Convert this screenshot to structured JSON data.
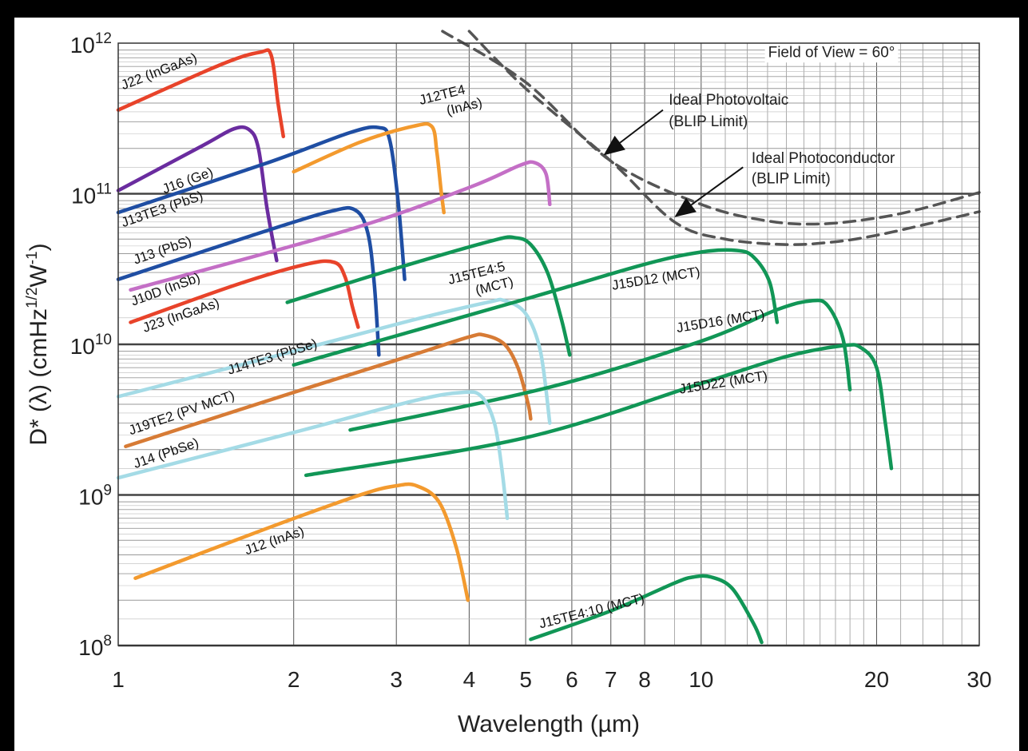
{
  "chart_data": {
    "type": "line",
    "xlabel": "Wavelength (µm)",
    "ylabel": "D* (λ) (cmHz1/2W-1)",
    "xscale": "log",
    "yscale": "log",
    "xlim": [
      1,
      30
    ],
    "ylim": [
      100000000.0,
      1000000000000.0
    ],
    "grid": true,
    "x_tick_labels": [
      {
        "v": 1,
        "label": "1"
      },
      {
        "v": 2,
        "label": "2"
      },
      {
        "v": 3,
        "label": "3"
      },
      {
        "v": 4,
        "label": "4"
      },
      {
        "v": 5,
        "label": "5"
      },
      {
        "v": 6,
        "label": "6"
      },
      {
        "v": 7,
        "label": "7"
      },
      {
        "v": 8,
        "label": "8"
      },
      {
        "v": 10,
        "label": "10"
      },
      {
        "v": 20,
        "label": "20"
      },
      {
        "v": 30,
        "label": "30"
      }
    ],
    "y_tick_labels": [
      {
        "v": 100000000.0,
        "mant": "10",
        "exp": "8"
      },
      {
        "v": 1000000000.0,
        "mant": "10",
        "exp": "9"
      },
      {
        "v": 10000000000.0,
        "mant": "10",
        "exp": "10"
      },
      {
        "v": 100000000000.0,
        "mant": "10",
        "exp": "11"
      },
      {
        "v": 1000000000000.0,
        "mant": "10",
        "exp": "12"
      }
    ],
    "annotations": [
      {
        "name": "field-of-view",
        "text": "Field of View = 60°",
        "x": 21.5,
        "y": 810000000000.0,
        "anchor": "end"
      },
      {
        "name": "ideal-photovoltaic-line1",
        "text": "Ideal Photovoltaic",
        "x": 8.8,
        "y": 390000000000.0,
        "anchor": "start"
      },
      {
        "name": "ideal-photovoltaic-line2",
        "text": "(BLIP Limit)",
        "x": 8.8,
        "y": 280000000000.0,
        "anchor": "start"
      },
      {
        "name": "ideal-photoconductor-line1",
        "text": "Ideal Photoconductor",
        "x": 12.2,
        "y": 160000000000.0,
        "anchor": "start"
      },
      {
        "name": "ideal-photoconductor-line2",
        "text": "(BLIP Limit)",
        "x": 12.2,
        "y": 117000000000.0,
        "anchor": "start"
      }
    ],
    "arrows": [
      {
        "name": "photovoltaic-arrow",
        "from": [
          8.6,
          360000000000.0
        ],
        "to": [
          6.8,
          180000000000.0
        ]
      },
      {
        "name": "photoconductor-arrow",
        "from": [
          11.8,
          150000000000.0
        ],
        "to": [
          9.0,
          70000000000.0
        ]
      }
    ],
    "series": [
      {
        "name": "J22 (InGaAs)",
        "color": "#e8432a",
        "x": [
          1,
          1.5,
          1.75,
          1.83,
          1.88,
          1.92
        ],
        "y": [
          360000000000.0,
          720000000000.0,
          870000000000.0,
          830000000000.0,
          400000000000.0,
          240000000000.0
        ],
        "label": {
          "text": "J22 (InGaAs)",
          "x": 1.02,
          "y": 490000000000.0,
          "angle": -21
        }
      },
      {
        "name": "J16 (Ge)",
        "color": "#6a2c9f",
        "x": [
          1,
          1.4,
          1.58,
          1.68,
          1.74,
          1.8,
          1.87
        ],
        "y": [
          105000000000.0,
          210000000000.0,
          270000000000.0,
          265000000000.0,
          200000000000.0,
          80000000000.0,
          36000000000.0
        ],
        "label": {
          "text": "J16 (Ge)",
          "x": 1.2,
          "y": 100000000000.0,
          "angle": -20
        }
      },
      {
        "name": "J13TE3 (PbS)",
        "color": "#1f4ea3",
        "x": [
          1,
          1.8,
          2.5,
          2.8,
          2.92,
          3.02,
          3.1
        ],
        "y": [
          75000000000.0,
          160000000000.0,
          255000000000.0,
          275000000000.0,
          230000000000.0,
          90000000000.0,
          27000000000.0
        ],
        "label": {
          "text": "J13TE3 (PbS)",
          "x": 1.02,
          "y": 60000000000.0,
          "angle": -19
        }
      },
      {
        "name": "J12TE4 (InAs)",
        "color": "#f39a2e",
        "x": [
          2,
          2.6,
          3.2,
          3.45,
          3.52,
          3.58,
          3.62
        ],
        "y": [
          140000000000.0,
          220000000000.0,
          280000000000.0,
          280000000000.0,
          190000000000.0,
          105000000000.0,
          75000000000.0
        ],
        "label": {
          "text": "J12TE4",
          "text2": "(InAs)",
          "x": 3.3,
          "y": 390000000000.0,
          "angle": -14
        }
      },
      {
        "name": "J13 (PbS)",
        "color": "#1f4ea3",
        "x": [
          1,
          1.7,
          2.3,
          2.55,
          2.68,
          2.75,
          2.8
        ],
        "y": [
          27000000000.0,
          53000000000.0,
          76000000000.0,
          78000000000.0,
          55000000000.0,
          25000000000.0,
          8500000000.0
        ],
        "label": {
          "text": "J13 (PbS)",
          "x": 1.07,
          "y": 34000000000.0,
          "angle": -19
        }
      },
      {
        "name": "J10D (InSb)",
        "color": "#c46fc6",
        "x": [
          1.05,
          2.5,
          4,
          4.9,
          5.2,
          5.42,
          5.5
        ],
        "y": [
          23000000000.0,
          58000000000.0,
          110000000000.0,
          155000000000.0,
          160000000000.0,
          135000000000.0,
          85000000000.0
        ],
        "label": {
          "text": "J10D (InSb)",
          "x": 1.06,
          "y": 18000000000.0,
          "angle": -20
        }
      },
      {
        "name": "J23 (InGaAs)",
        "color": "#e8432a",
        "x": [
          1.05,
          1.6,
          2.1,
          2.35,
          2.45,
          2.52,
          2.58
        ],
        "y": [
          14000000000.0,
          25000000000.0,
          34000000000.0,
          35000000000.0,
          28000000000.0,
          18000000000.0,
          13000000000.0
        ],
        "label": {
          "text": "J23 (InGaAs)",
          "x": 1.11,
          "y": 12000000000.0,
          "angle": -19
        }
      },
      {
        "name": "J15TE4:5 (MCT)",
        "color": "#119656",
        "x": [
          1.95,
          3,
          4.4,
          4.8,
          5.1,
          5.45,
          5.75,
          5.95
        ],
        "y": [
          19000000000.0,
          32000000000.0,
          49000000000.0,
          51000000000.0,
          46000000000.0,
          30000000000.0,
          15000000000.0,
          8500000000.0
        ],
        "label": {
          "text": "J15TE4:5",
          "text2": "(MCT)",
          "x": 3.7,
          "y": 25000000000.0,
          "angle": -14
        }
      },
      {
        "name": "J14TE3 (PbSe)",
        "color": "#a4dbe6",
        "x": [
          1,
          2,
          3.2,
          4.3,
          4.6,
          5.0,
          5.3,
          5.5
        ],
        "y": [
          4500000000.0,
          9000000000.0,
          14500000000.0,
          19000000000.0,
          19500000000.0,
          16000000000.0,
          9000000000.0,
          3000000000.0
        ],
        "label": {
          "text": "J14TE3 (PbSe)",
          "x": 1.55,
          "y": 6300000000.0,
          "angle": -17
        }
      },
      {
        "name": "J15D12 (MCT)",
        "color": "#119656",
        "x": [
          2,
          5,
          8,
          10,
          11.5,
          12.3,
          13.1,
          13.5
        ],
        "y": [
          7300000000.0,
          20000000000.0,
          34000000000.0,
          41000000000.0,
          42000000000.0,
          38000000000.0,
          26000000000.0,
          14000000000.0
        ],
        "label": {
          "text": "J15D12 (MCT)",
          "x": 7.05,
          "y": 23000000000.0,
          "angle": -9
        }
      },
      {
        "name": "J19TE2 (PV MCT)",
        "color": "#d77b35",
        "x": [
          1.03,
          2,
          3.2,
          4.0,
          4.25,
          4.6,
          4.85,
          5.05,
          5.1
        ],
        "y": [
          2100000000.0,
          4800000000.0,
          8500000000.0,
          11200000000.0,
          11500000000.0,
          10000000000.0,
          7000000000.0,
          4000000000.0,
          3200000000.0
        ],
        "label": {
          "text": "J19TE2 (PV MCT)",
          "x": 1.05,
          "y": 2500000000.0,
          "angle": -19
        }
      },
      {
        "name": "J15D16 (MCT)",
        "color": "#119656",
        "x": [
          2.5,
          5.5,
          10,
          13.5,
          15.5,
          16.5,
          17.5,
          18
        ],
        "y": [
          2700000000.0,
          5200000000.0,
          10500000000.0,
          17000000000.0,
          19500000000.0,
          18000000000.0,
          11000000000.0,
          5000000000.0
        ],
        "label": {
          "text": "J15D16 (MCT)",
          "x": 9.1,
          "y": 12000000000.0,
          "angle": -9
        }
      },
      {
        "name": "J14 (PbSe)",
        "color": "#a4dbe6",
        "x": [
          1,
          2,
          3.2,
          3.9,
          4.2,
          4.42,
          4.55,
          4.65
        ],
        "y": [
          1300000000.0,
          2600000000.0,
          4200000000.0,
          4800000000.0,
          4500000000.0,
          3000000000.0,
          1500000000.0,
          700000000.0
        ],
        "label": {
          "text": "J14 (PbSe)",
          "x": 1.07,
          "y": 1500000000.0,
          "angle": -19
        }
      },
      {
        "name": "J15D22 (MCT)",
        "color": "#119656",
        "x": [
          2.1,
          5,
          10,
          14,
          17.5,
          18.8,
          20,
          20.7,
          21.2
        ],
        "y": [
          1350000000.0,
          2400000000.0,
          5500000000.0,
          8300000000.0,
          9800000000.0,
          9500000000.0,
          7000000000.0,
          3000000000.0,
          1500000000.0
        ],
        "label": {
          "text": "J15D22 (MCT)",
          "x": 9.2,
          "y": 4700000000.0,
          "angle": -9
        }
      },
      {
        "name": "J12 (InAs)",
        "color": "#f39a2e",
        "x": [
          1.07,
          1.8,
          2.6,
          3.0,
          3.25,
          3.55,
          3.8,
          3.98
        ],
        "y": [
          280000000.0,
          600000000.0,
          1000000000.0,
          1150000000.0,
          1150000000.0,
          900000000.0,
          450000000.0,
          200000000.0
        ],
        "label": {
          "text": "J12 (InAs)",
          "x": 1.66,
          "y": 400000000.0,
          "angle": -19
        }
      },
      {
        "name": "J15TE4:10 (MCT)",
        "color": "#119656",
        "x": [
          5.1,
          7,
          9,
          9.7,
          10.4,
          11.3,
          12.3,
          12.7
        ],
        "y": [
          110000000.0,
          170000000.0,
          260000000.0,
          285000000.0,
          285000000.0,
          240000000.0,
          140000000.0,
          105000000.0
        ],
        "label": {
          "text": "J15TE4:10 (MCT)",
          "x": 5.3,
          "y": 130000000.0,
          "angle": -14
        }
      },
      {
        "name": "Ideal Photovoltaic (BLIP Limit)",
        "color": "#555555",
        "dashed": true,
        "x": [
          3.6,
          5,
          7,
          10,
          13,
          16,
          20,
          24,
          30
        ],
        "y": [
          1200000000000.0,
          550000000000.0,
          165000000000.0,
          85000000000.0,
          66000000000.0,
          63000000000.0,
          69000000000.0,
          80000000000.0,
          102000000000.0
        ]
      },
      {
        "name": "Ideal Photoconductor (BLIP Limit)",
        "color": "#555555",
        "dashed": true,
        "x": [
          4.0,
          5,
          7,
          9,
          11,
          14,
          17,
          20,
          24,
          30
        ],
        "y": [
          1200000000000.0,
          500000000000.0,
          165000000000.0,
          65000000000.0,
          50000000000.0,
          46000000000.0,
          48000000000.0,
          53000000000.0,
          62000000000.0,
          76000000000.0
        ]
      }
    ]
  }
}
